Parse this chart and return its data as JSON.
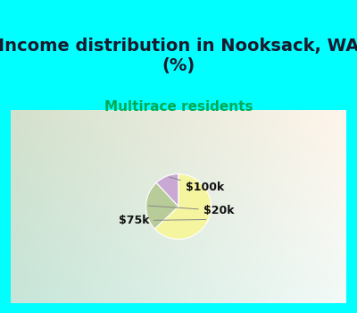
{
  "title": "Income distribution in Nooksack, WA\n(%)",
  "subtitle": "Multirace residents",
  "title_fontsize": 14,
  "subtitle_fontsize": 11,
  "subtitle_color": "#00aa55",
  "background_color": "#00ffff",
  "slices": [
    {
      "label": "$100k",
      "value": 12,
      "color": "#c9a8d4"
    },
    {
      "label": "$20k",
      "value": 25,
      "color": "#b8cc99"
    },
    {
      "label": "$75k",
      "value": 63,
      "color": "#f5f5a0"
    }
  ],
  "label_fontsize": 9,
  "startangle": 90
}
